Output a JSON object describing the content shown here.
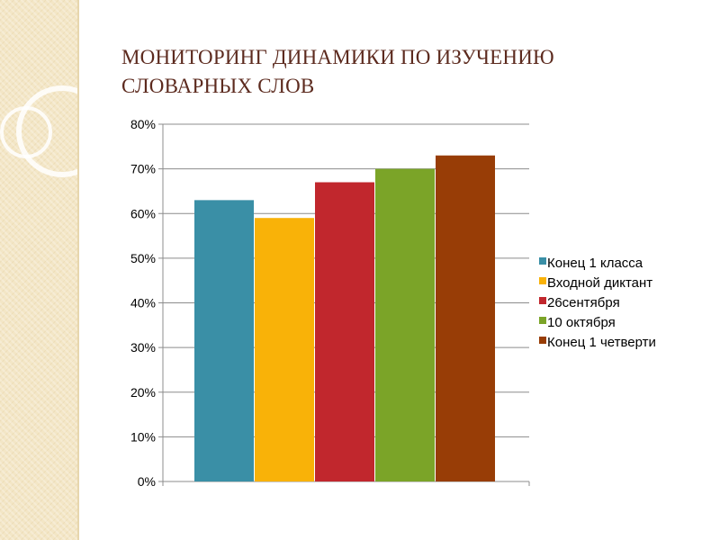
{
  "chart_data": {
    "type": "bar",
    "title_lines": [
      "МОНИТОРИНГ ДИНАМИКИ ПО ИЗУЧЕНИЮ",
      "СЛОВАРНЫХ СЛОВ"
    ],
    "series": [
      {
        "name": "Конец 1 класса",
        "value": 63,
        "color": "#3a8fa6"
      },
      {
        "name": "Входной диктант",
        "value": 59,
        "color": "#f9b208"
      },
      {
        "name": "26сентября",
        "value": 67,
        "color": "#c1272d"
      },
      {
        "name": "10 октября",
        "value": 70,
        "color": "#7ba428"
      },
      {
        "name": "Конец 1 четверти",
        "value": 73,
        "color": "#983d06"
      }
    ],
    "y_ticks": [
      "0%",
      "10%",
      "20%",
      "30%",
      "40%",
      "50%",
      "60%",
      "70%",
      "80%"
    ],
    "ylim": [
      0,
      80
    ],
    "unit": "%",
    "grid": true,
    "legend_position": "right"
  }
}
